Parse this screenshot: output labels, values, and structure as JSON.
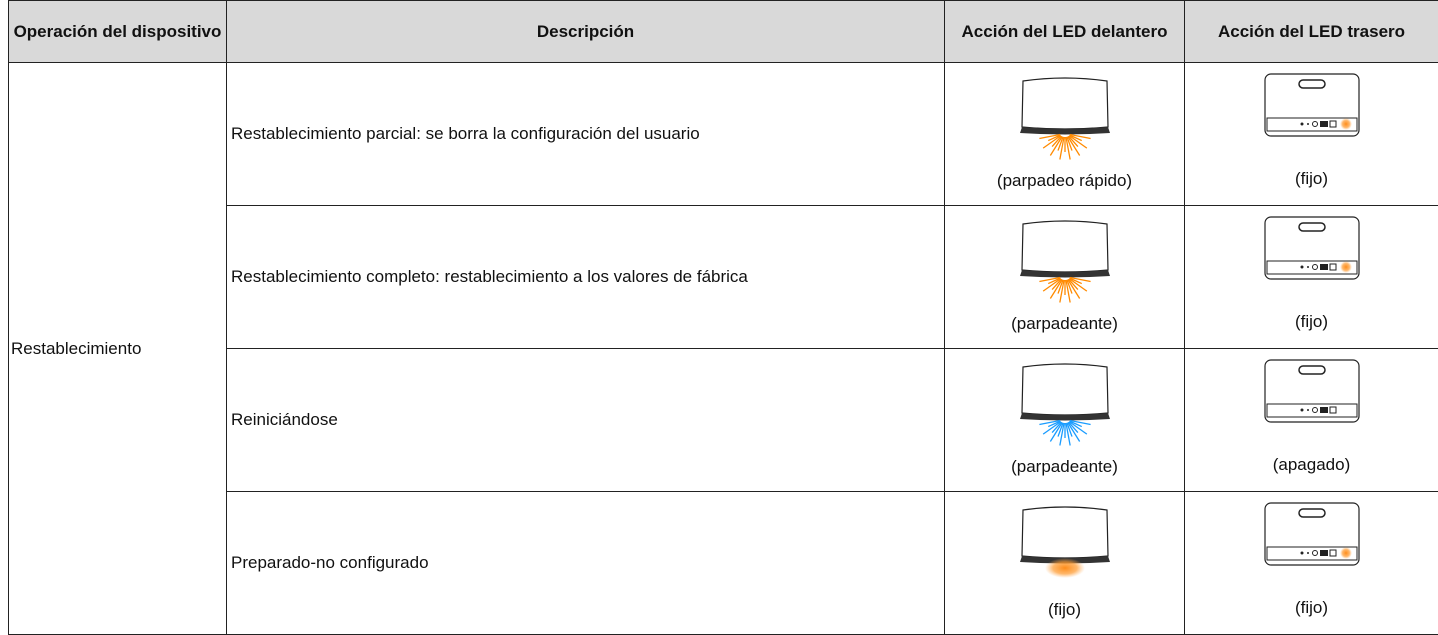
{
  "table": {
    "header": [
      "Operación del dispositivo",
      "Descripción",
      "Acción del LED delantero",
      "Acción del LED trasero"
    ],
    "group_label": "Restablecimiento",
    "rows": [
      {
        "description": "Restablecimiento parcial: se borra la configuración del usuario",
        "front": "(parpadeo rápido)",
        "rear": "(fijo)"
      },
      {
        "description": "Restablecimiento completo: restablecimiento a los valores de fábrica",
        "front": "(parpadeante)",
        "rear": "(fijo)"
      },
      {
        "description": "Reiniciándose",
        "front": "(parpadeante)",
        "rear": "(apagado)"
      },
      {
        "description": "Preparado-no configurado",
        "front": "(fijo)",
        "rear": "(fijo)"
      }
    ]
  }
}
